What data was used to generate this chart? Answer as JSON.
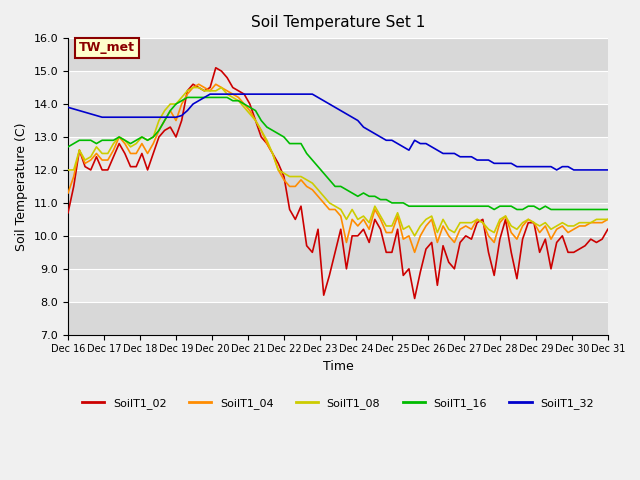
{
  "title": "Soil Temperature Set 1",
  "xlabel": "Time",
  "ylabel": "Soil Temperature (C)",
  "ylim": [
    7.0,
    16.0
  ],
  "yticks": [
    7.0,
    8.0,
    9.0,
    10.0,
    11.0,
    12.0,
    13.0,
    14.0,
    15.0,
    16.0
  ],
  "x_labels": [
    "Dec 16",
    "Dec 17",
    "Dec 18",
    "Dec 19",
    "Dec 20",
    "Dec 21",
    "Dec 22",
    "Dec 23",
    "Dec 24",
    "Dec 25",
    "Dec 26",
    "Dec 27",
    "Dec 28",
    "Dec 29",
    "Dec 30",
    "Dec 31"
  ],
  "xtick_positions": [
    0,
    1,
    2,
    3,
    4,
    5,
    6,
    7,
    8,
    9,
    10,
    11,
    12,
    13,
    14,
    15
  ],
  "annotation_label": "TW_met",
  "annotation_color": "#8B0000",
  "annotation_bg": "#FFFFCC",
  "series": {
    "SoilT1_02": {
      "color": "#CC0000",
      "values": [
        10.7,
        11.5,
        12.6,
        12.1,
        12.0,
        12.4,
        12.0,
        12.0,
        12.4,
        12.8,
        12.5,
        12.1,
        12.1,
        12.5,
        12.0,
        12.5,
        13.0,
        13.2,
        13.3,
        13.0,
        13.5,
        14.4,
        14.6,
        14.5,
        14.4,
        14.5,
        15.1,
        15.0,
        14.8,
        14.5,
        14.4,
        14.3,
        14.0,
        13.5,
        13.0,
        12.8,
        12.5,
        12.2,
        11.8,
        10.8,
        10.5,
        10.9,
        9.7,
        9.5,
        10.2,
        8.2,
        8.8,
        9.5,
        10.2,
        9.0,
        10.0,
        10.0,
        10.2,
        9.8,
        10.5,
        10.2,
        9.5,
        9.5,
        10.2,
        8.8,
        9.0,
        8.1,
        8.9,
        9.6,
        9.8,
        8.5,
        9.7,
        9.2,
        9.0,
        9.8,
        10.0,
        9.9,
        10.4,
        10.5,
        9.5,
        8.8,
        9.9,
        10.5,
        9.5,
        8.7,
        9.9,
        10.4,
        10.4,
        9.5,
        9.9,
        9.0,
        9.8,
        10.0,
        9.5,
        9.5,
        9.6,
        9.7,
        9.9,
        9.8,
        9.9,
        10.2
      ]
    },
    "SoilT1_04": {
      "color": "#FF8C00",
      "values": [
        11.3,
        11.8,
        12.6,
        12.2,
        12.3,
        12.5,
        12.3,
        12.3,
        12.6,
        13.0,
        12.8,
        12.5,
        12.5,
        12.8,
        12.5,
        12.8,
        13.2,
        13.5,
        13.8,
        13.5,
        14.0,
        14.3,
        14.5,
        14.6,
        14.5,
        14.4,
        14.6,
        14.5,
        14.4,
        14.3,
        14.2,
        14.0,
        13.8,
        13.5,
        13.2,
        12.8,
        12.5,
        12.0,
        11.7,
        11.5,
        11.5,
        11.7,
        11.5,
        11.4,
        11.2,
        11.0,
        10.8,
        10.8,
        10.6,
        9.8,
        10.5,
        10.3,
        10.5,
        10.2,
        10.8,
        10.5,
        10.1,
        10.1,
        10.6,
        9.9,
        10.0,
        9.5,
        10.0,
        10.3,
        10.5,
        9.8,
        10.3,
        10.0,
        9.8,
        10.2,
        10.3,
        10.2,
        10.5,
        10.4,
        10.0,
        9.8,
        10.4,
        10.6,
        10.1,
        9.9,
        10.3,
        10.5,
        10.4,
        10.1,
        10.3,
        9.9,
        10.2,
        10.3,
        10.1,
        10.2,
        10.3,
        10.3,
        10.4,
        10.4,
        10.4,
        10.5
      ]
    },
    "SoilT1_08": {
      "color": "#CCCC00",
      "values": [
        12.0,
        12.0,
        12.6,
        12.3,
        12.4,
        12.7,
        12.5,
        12.5,
        12.8,
        13.0,
        12.9,
        12.7,
        12.8,
        13.0,
        12.9,
        13.0,
        13.5,
        13.8,
        14.0,
        14.0,
        14.2,
        14.4,
        14.5,
        14.5,
        14.4,
        14.4,
        14.4,
        14.5,
        14.3,
        14.2,
        14.1,
        13.9,
        13.7,
        13.5,
        13.2,
        12.9,
        12.5,
        12.0,
        11.9,
        11.8,
        11.8,
        11.8,
        11.7,
        11.6,
        11.4,
        11.2,
        11.0,
        10.9,
        10.8,
        10.5,
        10.8,
        10.5,
        10.6,
        10.4,
        10.9,
        10.6,
        10.3,
        10.3,
        10.7,
        10.2,
        10.3,
        10.0,
        10.3,
        10.5,
        10.6,
        10.1,
        10.5,
        10.2,
        10.1,
        10.4,
        10.4,
        10.4,
        10.5,
        10.4,
        10.2,
        10.1,
        10.5,
        10.6,
        10.3,
        10.2,
        10.4,
        10.5,
        10.4,
        10.3,
        10.4,
        10.2,
        10.3,
        10.4,
        10.3,
        10.3,
        10.4,
        10.4,
        10.4,
        10.5,
        10.5,
        10.5
      ]
    },
    "SoilT1_16": {
      "color": "#00BB00",
      "values": [
        12.7,
        12.8,
        12.9,
        12.9,
        12.9,
        12.8,
        12.9,
        12.9,
        12.9,
        13.0,
        12.9,
        12.8,
        12.9,
        13.0,
        12.9,
        13.0,
        13.2,
        13.5,
        13.8,
        14.0,
        14.1,
        14.2,
        14.2,
        14.2,
        14.2,
        14.2,
        14.2,
        14.2,
        14.2,
        14.1,
        14.1,
        14.0,
        13.9,
        13.8,
        13.5,
        13.3,
        13.2,
        13.1,
        13.0,
        12.8,
        12.8,
        12.8,
        12.5,
        12.3,
        12.1,
        11.9,
        11.7,
        11.5,
        11.5,
        11.4,
        11.3,
        11.2,
        11.3,
        11.2,
        11.2,
        11.1,
        11.1,
        11.0,
        11.0,
        11.0,
        10.9,
        10.9,
        10.9,
        10.9,
        10.9,
        10.9,
        10.9,
        10.9,
        10.9,
        10.9,
        10.9,
        10.9,
        10.9,
        10.9,
        10.9,
        10.8,
        10.9,
        10.9,
        10.9,
        10.8,
        10.8,
        10.9,
        10.9,
        10.8,
        10.9,
        10.8,
        10.8,
        10.8,
        10.8,
        10.8,
        10.8,
        10.8,
        10.8,
        10.8,
        10.8,
        10.8
      ]
    },
    "SoilT1_32": {
      "color": "#0000CC",
      "values": [
        13.9,
        13.85,
        13.8,
        13.75,
        13.7,
        13.65,
        13.6,
        13.6,
        13.6,
        13.6,
        13.6,
        13.6,
        13.6,
        13.6,
        13.6,
        13.6,
        13.6,
        13.6,
        13.6,
        13.6,
        13.65,
        13.8,
        14.0,
        14.1,
        14.2,
        14.3,
        14.3,
        14.3,
        14.3,
        14.3,
        14.3,
        14.3,
        14.3,
        14.3,
        14.3,
        14.3,
        14.3,
        14.3,
        14.3,
        14.3,
        14.3,
        14.3,
        14.3,
        14.3,
        14.2,
        14.1,
        14.0,
        13.9,
        13.8,
        13.7,
        13.6,
        13.5,
        13.3,
        13.2,
        13.1,
        13.0,
        12.9,
        12.9,
        12.8,
        12.7,
        12.6,
        12.9,
        12.8,
        12.8,
        12.7,
        12.6,
        12.5,
        12.5,
        12.5,
        12.4,
        12.4,
        12.4,
        12.3,
        12.3,
        12.3,
        12.2,
        12.2,
        12.2,
        12.2,
        12.1,
        12.1,
        12.1,
        12.1,
        12.1,
        12.1,
        12.1,
        12.0,
        12.1,
        12.1,
        12.0,
        12.0,
        12.0,
        12.0,
        12.0,
        12.0,
        12.0
      ]
    }
  },
  "n_points": 96,
  "days": 15,
  "fig_bg_color": "#F0F0F0",
  "plot_bg_color": "#E8E8E8",
  "grid_color": "#FFFFFF",
  "stripe_colors": [
    "#D8D8D8",
    "#E8E8E8"
  ]
}
